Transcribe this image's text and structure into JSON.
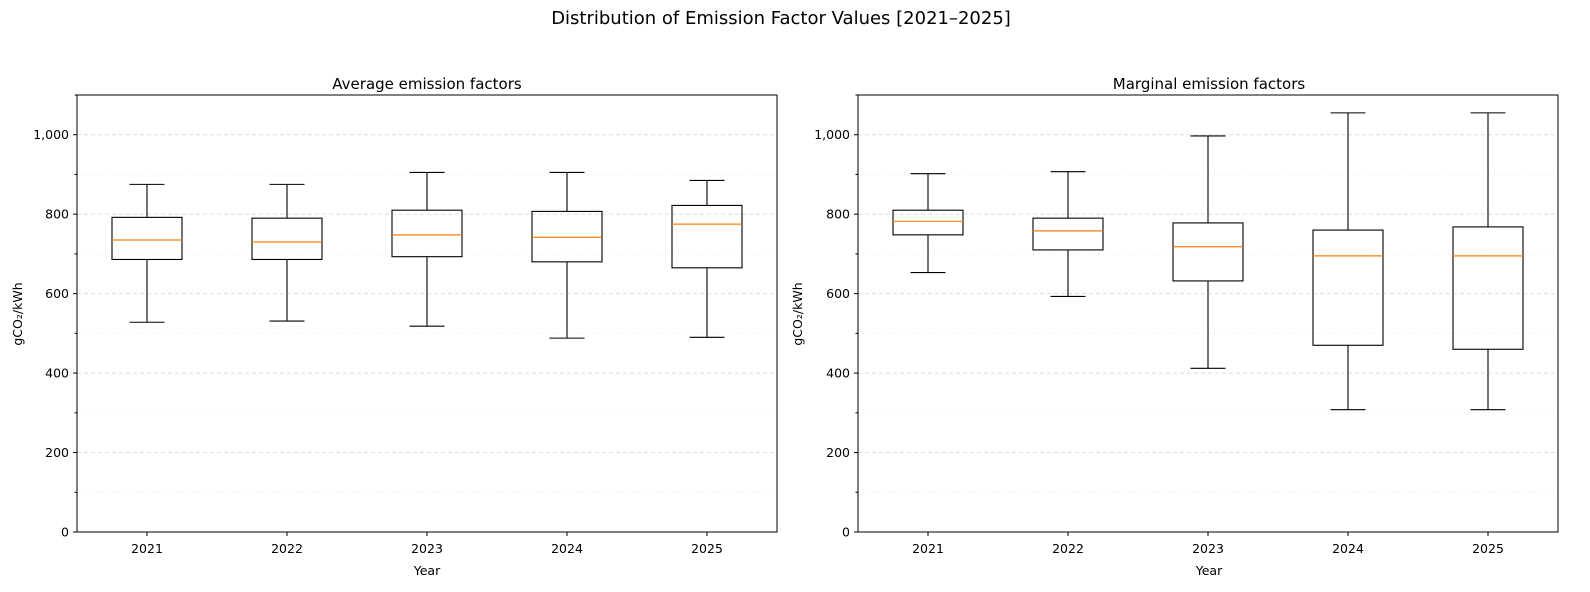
{
  "figure_title": "Distribution of Emission Factor Values [2021–2025]",
  "chart_data": [
    {
      "type": "box",
      "title": "Average emission factors",
      "xlabel": "Year",
      "ylabel": "gCO₂/kWh",
      "ylim": [
        0,
        1100
      ],
      "yticks": [
        0,
        200,
        400,
        600,
        800,
        1000
      ],
      "ytick_labels": [
        "0",
        "200",
        "400",
        "600",
        "800",
        "1,000"
      ],
      "grid": "horizontal dashed",
      "categories": [
        "2021",
        "2022",
        "2023",
        "2024",
        "2025"
      ],
      "boxes": [
        {
          "whislo": 528,
          "q1": 686,
          "med": 735,
          "q3": 792,
          "whishi": 875
        },
        {
          "whislo": 531,
          "q1": 686,
          "med": 730,
          "q3": 790,
          "whishi": 875
        },
        {
          "whislo": 518,
          "q1": 693,
          "med": 748,
          "q3": 810,
          "whishi": 905
        },
        {
          "whislo": 488,
          "q1": 680,
          "med": 742,
          "q3": 807,
          "whishi": 905
        },
        {
          "whislo": 490,
          "q1": 665,
          "med": 775,
          "q3": 822,
          "whishi": 885
        }
      ],
      "colors": {
        "box": "#000000",
        "median": "#ff7f0e",
        "grid": "#dddddd"
      }
    },
    {
      "type": "box",
      "title": "Marginal emission factors",
      "xlabel": "Year",
      "ylabel": "gCO₂/kWh",
      "ylim": [
        0,
        1100
      ],
      "yticks": [
        0,
        200,
        400,
        600,
        800,
        1000
      ],
      "ytick_labels": [
        "0",
        "200",
        "400",
        "600",
        "800",
        "1,000"
      ],
      "grid": "horizontal dashed",
      "categories": [
        "2021",
        "2022",
        "2023",
        "2024",
        "2025"
      ],
      "boxes": [
        {
          "whislo": 653,
          "q1": 748,
          "med": 782,
          "q3": 810,
          "whishi": 902
        },
        {
          "whislo": 593,
          "q1": 710,
          "med": 758,
          "q3": 790,
          "whishi": 907
        },
        {
          "whislo": 412,
          "q1": 632,
          "med": 718,
          "q3": 778,
          "whishi": 997
        },
        {
          "whislo": 308,
          "q1": 470,
          "med": 695,
          "q3": 760,
          "whishi": 1055
        },
        {
          "whislo": 308,
          "q1": 460,
          "med": 695,
          "q3": 768,
          "whishi": 1055
        }
      ],
      "colors": {
        "box": "#000000",
        "median": "#ff7f0e",
        "grid": "#dddddd"
      }
    }
  ]
}
